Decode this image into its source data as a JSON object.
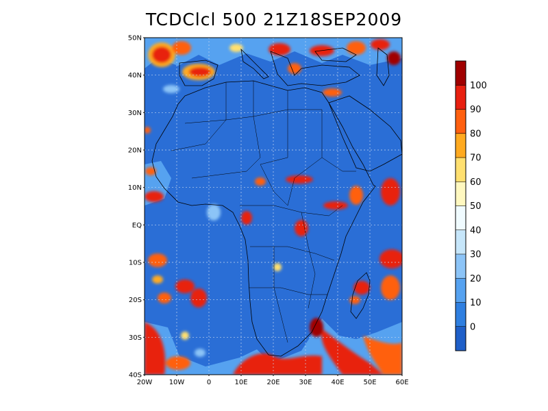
{
  "title": "TCDClcl 500 21Z18SEP2009",
  "map": {
    "lon_range": [
      -20,
      60
    ],
    "lat_range": [
      -40,
      50
    ],
    "lat_ticks": [
      "50N",
      "40N",
      "30N",
      "20N",
      "10N",
      "EQ",
      "10S",
      "20S",
      "30S",
      "40S"
    ],
    "lon_ticks": [
      "20W",
      "10W",
      "0",
      "10E",
      "20E",
      "30E",
      "40E",
      "50E",
      "60E"
    ],
    "grid": true,
    "base_color": "#2a6ed6"
  },
  "colorbar": {
    "labels": [
      "0",
      "10",
      "20",
      "30",
      "40",
      "50",
      "60",
      "70",
      "80",
      "90",
      "100"
    ],
    "colors": [
      "#1f5fc8",
      "#2f7fe0",
      "#56a2f0",
      "#8cc4f7",
      "#c6e6fa",
      "#f0fbff",
      "#fff8c0",
      "#ffe070",
      "#ffaa20",
      "#ff6010",
      "#e82010",
      "#a00000"
    ]
  }
}
